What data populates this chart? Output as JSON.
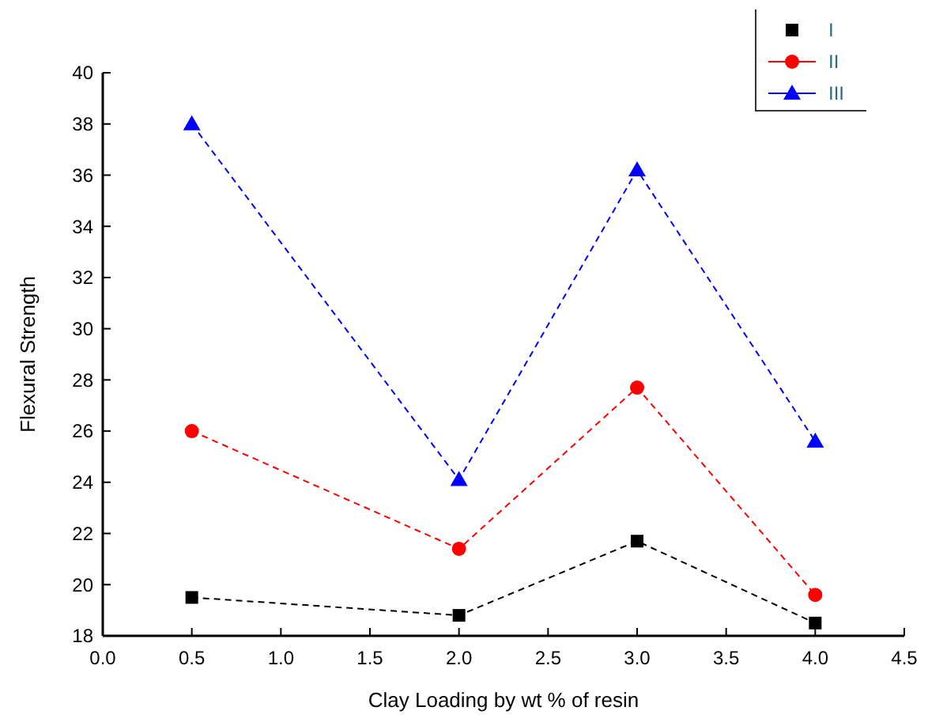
{
  "chart_data": {
    "type": "line",
    "xlabel": "Clay Loading by wt % of resin",
    "ylabel": "Flexural Strength",
    "x": [
      0.5,
      2.0,
      3.0,
      4.0
    ],
    "series": [
      {
        "name": "I",
        "color": "#000000",
        "marker": "square",
        "values": [
          19.5,
          18.8,
          21.7,
          18.5
        ]
      },
      {
        "name": "II",
        "color": "#ff0000",
        "marker": "circle",
        "values": [
          26.0,
          21.4,
          27.7,
          19.6
        ]
      },
      {
        "name": "III",
        "color": "#0000ff",
        "marker": "triangle",
        "values": [
          38.0,
          24.1,
          36.2,
          25.6
        ]
      }
    ],
    "xlim": [
      0,
      4.5
    ],
    "xticks": [
      {
        "value": 0,
        "label": "0.0"
      },
      {
        "value": 0.5,
        "label": "0.5"
      },
      {
        "value": 1,
        "label": "1.0"
      },
      {
        "value": 1.5,
        "label": "1.5"
      },
      {
        "value": 2,
        "label": "2.0"
      },
      {
        "value": 2.5,
        "label": "2.5"
      },
      {
        "value": 3,
        "label": "3.0"
      },
      {
        "value": 3.5,
        "label": "3.5"
      },
      {
        "value": 4,
        "label": "4.0"
      },
      {
        "value": 4.5,
        "label": "4.5"
      }
    ],
    "ylim": [
      18,
      40
    ],
    "yticks": [
      18,
      20,
      22,
      24,
      26,
      28,
      30,
      32,
      34,
      36,
      38,
      40
    ],
    "grid": false,
    "legend": "top right",
    "line_style": "dashed"
  }
}
